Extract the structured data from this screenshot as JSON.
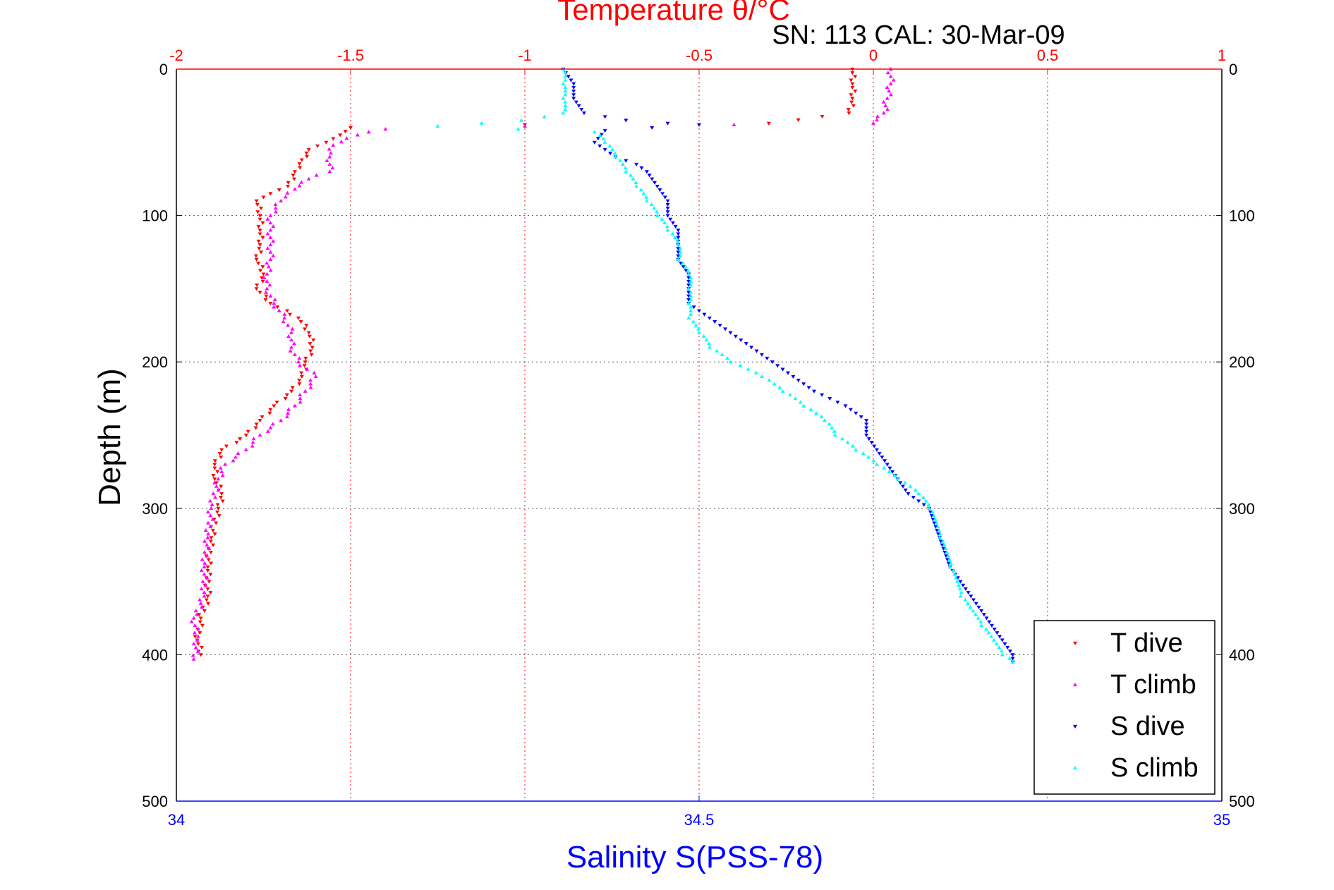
{
  "chart_data": {
    "type": "scatter",
    "title": "Temperature θ/°C",
    "subtitle": "SN: 113  CAL: 30-Mar-09",
    "xlabel": "Salinity S(PSS-78)",
    "ylabel": "Depth (m)",
    "x_top_axis": {
      "label": "Temperature θ/°C",
      "range": [
        -2,
        1
      ],
      "ticks": [
        "-2",
        "-1.5",
        "-1",
        "-0.5",
        "0",
        "0.5",
        "1"
      ],
      "color": "#ff0000"
    },
    "x_bottom_axis": {
      "label": "Salinity S(PSS-78)",
      "range": [
        34,
        35
      ],
      "ticks": [
        "34",
        "34.5",
        "35"
      ],
      "color": "#0000ff"
    },
    "y_axis": {
      "label": "Depth (m)",
      "range": [
        0,
        500
      ],
      "inverted": true,
      "ticks": [
        "0",
        "100",
        "200",
        "300",
        "400",
        "500"
      ]
    },
    "grid": true,
    "legend_position": "bottom-right",
    "colors": {
      "t_dive": "#ff0000",
      "t_climb": "#ff00ff",
      "s_dive": "#0000ff",
      "s_climb": "#00ffff",
      "grid": "#555555",
      "top_grid": "#ff0000"
    },
    "series": [
      {
        "name": "T dive",
        "axis": "temperature",
        "marker": "triangle-down",
        "color": "#ff0000",
        "points": [
          [
            -0.06,
            0
          ],
          [
            -0.06,
            10
          ],
          [
            -0.06,
            20
          ],
          [
            -0.07,
            30
          ],
          [
            -0.3,
            37
          ],
          [
            -1.0,
            38
          ],
          [
            -1.5,
            40
          ],
          [
            -1.53,
            45
          ],
          [
            -1.57,
            50
          ],
          [
            -1.62,
            55
          ],
          [
            -1.64,
            62
          ],
          [
            -1.66,
            70
          ],
          [
            -1.68,
            80
          ],
          [
            -1.73,
            85
          ],
          [
            -1.77,
            90
          ],
          [
            -1.76,
            100
          ],
          [
            -1.76,
            110
          ],
          [
            -1.76,
            120
          ],
          [
            -1.77,
            130
          ],
          [
            -1.75,
            140
          ],
          [
            -1.77,
            150
          ],
          [
            -1.73,
            160
          ],
          [
            -1.65,
            170
          ],
          [
            -1.62,
            180
          ],
          [
            -1.61,
            190
          ],
          [
            -1.63,
            200
          ],
          [
            -1.64,
            210
          ],
          [
            -1.67,
            220
          ],
          [
            -1.72,
            230
          ],
          [
            -1.76,
            240
          ],
          [
            -1.8,
            250
          ],
          [
            -1.87,
            260
          ],
          [
            -1.89,
            270
          ],
          [
            -1.89,
            280
          ],
          [
            -1.87,
            290
          ],
          [
            -1.88,
            300
          ],
          [
            -1.9,
            320
          ],
          [
            -1.91,
            340
          ],
          [
            -1.91,
            360
          ],
          [
            -1.93,
            375
          ],
          [
            -1.94,
            390
          ],
          [
            -1.93,
            400
          ]
        ]
      },
      {
        "name": "T climb",
        "axis": "temperature",
        "marker": "triangle-up",
        "color": "#ff00ff",
        "points": [
          [
            0.05,
            0
          ],
          [
            0.05,
            10
          ],
          [
            0.04,
            20
          ],
          [
            0.03,
            30
          ],
          [
            0.0,
            37
          ],
          [
            -0.4,
            38
          ],
          [
            -1.0,
            39
          ],
          [
            -1.4,
            41
          ],
          [
            -1.48,
            45
          ],
          [
            -1.55,
            52
          ],
          [
            -1.56,
            60
          ],
          [
            -1.56,
            70
          ],
          [
            -1.62,
            75
          ],
          [
            -1.66,
            82
          ],
          [
            -1.7,
            90
          ],
          [
            -1.73,
            100
          ],
          [
            -1.73,
            110
          ],
          [
            -1.73,
            120
          ],
          [
            -1.73,
            130
          ],
          [
            -1.74,
            140
          ],
          [
            -1.74,
            150
          ],
          [
            -1.72,
            160
          ],
          [
            -1.69,
            170
          ],
          [
            -1.67,
            180
          ],
          [
            -1.67,
            190
          ],
          [
            -1.65,
            200
          ],
          [
            -1.6,
            210
          ],
          [
            -1.63,
            220
          ],
          [
            -1.66,
            230
          ],
          [
            -1.7,
            240
          ],
          [
            -1.76,
            250
          ],
          [
            -1.8,
            260
          ],
          [
            -1.86,
            270
          ],
          [
            -1.88,
            280
          ],
          [
            -1.9,
            300
          ],
          [
            -1.91,
            320
          ],
          [
            -1.92,
            340
          ],
          [
            -1.92,
            360
          ],
          [
            -1.95,
            375
          ],
          [
            -1.94,
            390
          ],
          [
            -1.95,
            403
          ]
        ]
      },
      {
        "name": "S dive",
        "axis": "salinity",
        "marker": "triangle-down",
        "color": "#0000ff",
        "points": [
          [
            34.37,
            0
          ],
          [
            34.38,
            10
          ],
          [
            34.38,
            20
          ],
          [
            34.39,
            30
          ],
          [
            34.43,
            35
          ],
          [
            34.47,
            37
          ],
          [
            34.5,
            38
          ],
          [
            34.41,
            42
          ],
          [
            34.4,
            50
          ],
          [
            34.42,
            60
          ],
          [
            34.44,
            65
          ],
          [
            34.45,
            70
          ],
          [
            34.46,
            80
          ],
          [
            34.47,
            90
          ],
          [
            34.47,
            100
          ],
          [
            34.48,
            110
          ],
          [
            34.48,
            120
          ],
          [
            34.48,
            130
          ],
          [
            34.49,
            140
          ],
          [
            34.49,
            150
          ],
          [
            34.49,
            160
          ],
          [
            34.51,
            170
          ],
          [
            34.53,
            180
          ],
          [
            34.55,
            190
          ],
          [
            34.57,
            200
          ],
          [
            34.59,
            210
          ],
          [
            34.61,
            220
          ],
          [
            34.64,
            230
          ],
          [
            34.66,
            240
          ],
          [
            34.66,
            250
          ],
          [
            34.67,
            260
          ],
          [
            34.68,
            270
          ],
          [
            34.69,
            280
          ],
          [
            34.7,
            290
          ],
          [
            34.72,
            300
          ],
          [
            34.73,
            320
          ],
          [
            34.74,
            340
          ],
          [
            34.76,
            360
          ],
          [
            34.78,
            380
          ],
          [
            34.8,
            400
          ],
          [
            34.8,
            405
          ]
        ]
      },
      {
        "name": "S climb",
        "axis": "salinity",
        "marker": "triangle-up",
        "color": "#00ffff",
        "points": [
          [
            34.37,
            0
          ],
          [
            34.37,
            10
          ],
          [
            34.37,
            20
          ],
          [
            34.37,
            30
          ],
          [
            34.33,
            35
          ],
          [
            34.25,
            39
          ],
          [
            34.4,
            43
          ],
          [
            34.41,
            50
          ],
          [
            34.42,
            60
          ],
          [
            34.43,
            70
          ],
          [
            34.44,
            80
          ],
          [
            34.45,
            90
          ],
          [
            34.46,
            100
          ],
          [
            34.47,
            110
          ],
          [
            34.48,
            120
          ],
          [
            34.48,
            130
          ],
          [
            34.49,
            140
          ],
          [
            34.49,
            150
          ],
          [
            34.49,
            160
          ],
          [
            34.49,
            170
          ],
          [
            34.5,
            180
          ],
          [
            34.51,
            190
          ],
          [
            34.53,
            200
          ],
          [
            34.56,
            210
          ],
          [
            34.58,
            220
          ],
          [
            34.6,
            230
          ],
          [
            34.62,
            240
          ],
          [
            34.63,
            250
          ],
          [
            34.65,
            260
          ],
          [
            34.67,
            270
          ],
          [
            34.69,
            280
          ],
          [
            34.71,
            290
          ],
          [
            34.72,
            300
          ],
          [
            34.73,
            320
          ],
          [
            34.74,
            340
          ],
          [
            34.75,
            360
          ],
          [
            34.77,
            380
          ],
          [
            34.79,
            400
          ],
          [
            34.8,
            405
          ]
        ]
      }
    ]
  }
}
